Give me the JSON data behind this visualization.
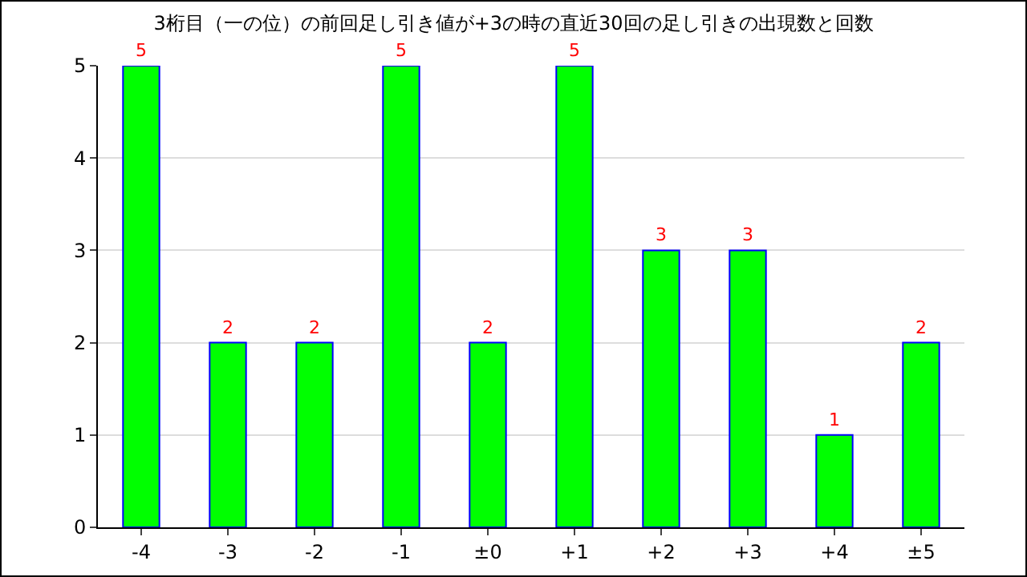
{
  "chart_data": {
    "type": "bar",
    "title": "3桁目（一の位）の前回足し引き値が+3の時の直近30回の足し引きの出現数と回数",
    "categories": [
      "-4",
      "-3",
      "-2",
      "-1",
      "±0",
      "+1",
      "+2",
      "+3",
      "+4",
      "±5"
    ],
    "values": [
      5,
      2,
      2,
      5,
      2,
      5,
      3,
      3,
      1,
      2
    ],
    "color": "#00ff00",
    "ylim": [
      0,
      5
    ],
    "yticks": [
      0,
      1,
      2,
      3,
      4,
      5
    ],
    "grid": "y",
    "data_labels": true
  }
}
